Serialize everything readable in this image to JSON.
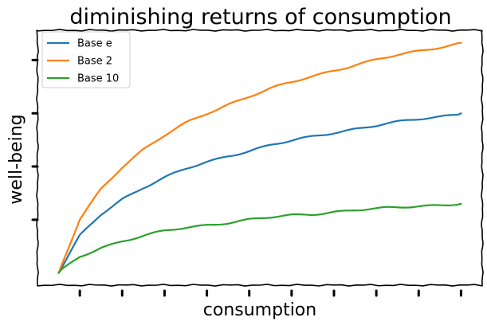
{
  "chart_data": {
    "type": "line",
    "title": "diminishing returns of consumption",
    "xlabel": "consumption",
    "ylabel": "well-being",
    "x": [
      1,
      2,
      3,
      4,
      5,
      6,
      7,
      8,
      9,
      10,
      11,
      12,
      13,
      14,
      15,
      16,
      17,
      18,
      19,
      20
    ],
    "xlim": [
      0,
      21
    ],
    "ylim": [
      -0.23,
      4.56
    ],
    "grid": false,
    "legend_position": "top-left",
    "series": [
      {
        "name": "Base e",
        "color": "#1f77b4",
        "values": [
          0.0,
          0.69,
          1.1,
          1.39,
          1.61,
          1.79,
          1.95,
          2.08,
          2.2,
          2.3,
          2.4,
          2.48,
          2.56,
          2.64,
          2.71,
          2.77,
          2.83,
          2.89,
          2.94,
          3.0
        ]
      },
      {
        "name": "Base 2",
        "color": "#ff7f0e",
        "values": [
          0.0,
          1.0,
          1.58,
          2.0,
          2.32,
          2.58,
          2.81,
          3.0,
          3.17,
          3.32,
          3.46,
          3.58,
          3.7,
          3.81,
          3.91,
          4.0,
          4.09,
          4.17,
          4.25,
          4.32
        ]
      },
      {
        "name": "Base 10",
        "color": "#2ca02c",
        "values": [
          0.0,
          0.3,
          0.48,
          0.6,
          0.7,
          0.78,
          0.85,
          0.9,
          0.95,
          1.0,
          1.04,
          1.08,
          1.11,
          1.15,
          1.18,
          1.2,
          1.23,
          1.26,
          1.28,
          1.3
        ]
      }
    ],
    "y_ticks": [
      1,
      2,
      3,
      4
    ],
    "x_ticks": [
      2,
      4,
      6,
      8,
      10,
      12,
      14,
      16,
      18,
      20
    ]
  }
}
